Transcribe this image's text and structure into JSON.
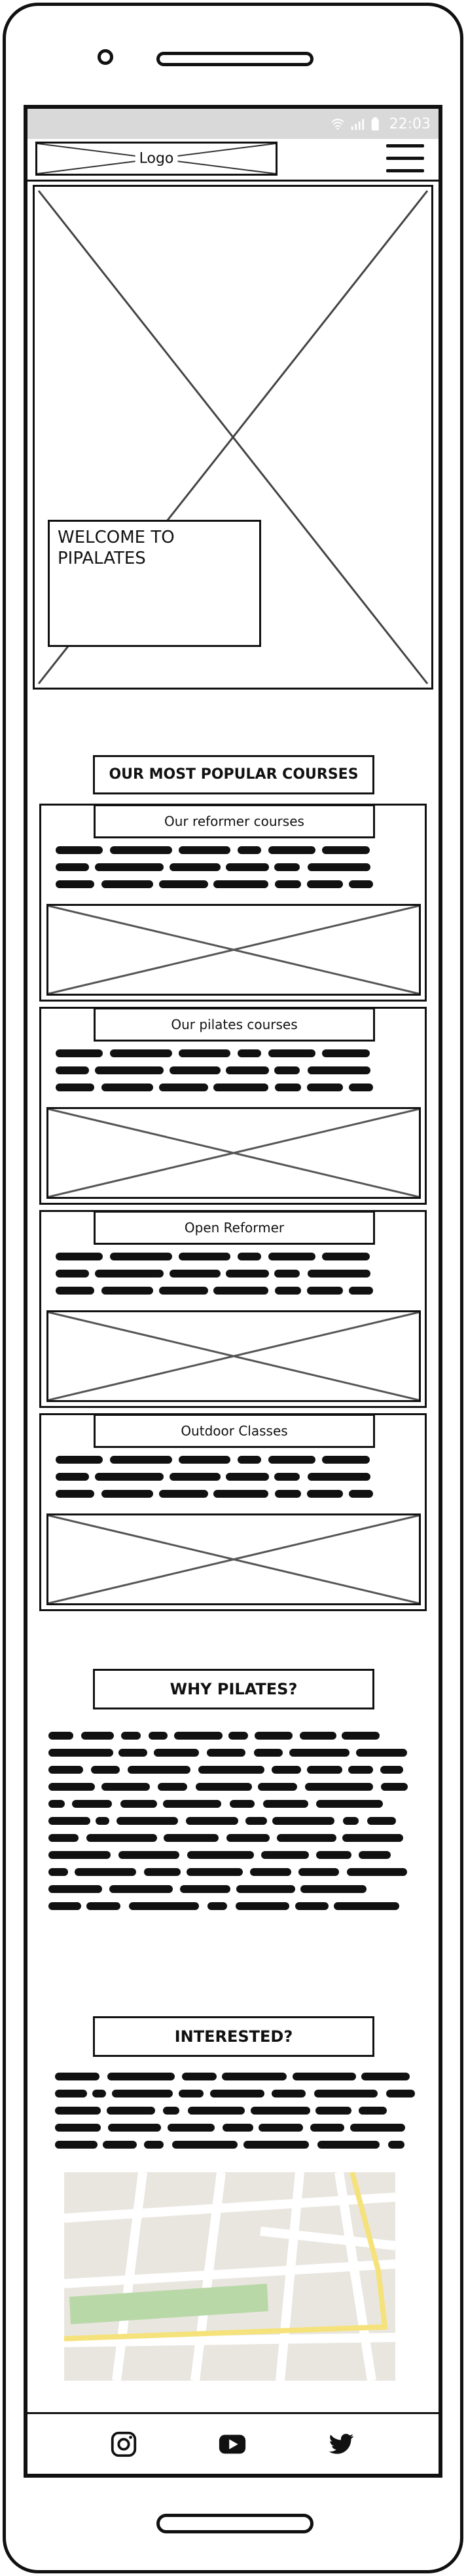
{
  "status_bar": {
    "time": "22:03",
    "icons": [
      "wifi-icon",
      "signal-icon",
      "battery-icon"
    ]
  },
  "header": {
    "logo": "Logo",
    "menu_icon": "hamburger-menu-icon"
  },
  "hero": {
    "welcome_line1": "WELCOME TO",
    "welcome_line2": "PIPALATES"
  },
  "popular": {
    "heading": "OUR MOST POPULAR COURSES",
    "courses": [
      {
        "title": "Our reformer courses"
      },
      {
        "title": "Our pilates courses"
      },
      {
        "title": "Open Reformer"
      },
      {
        "title": "Outdoor Classes"
      }
    ]
  },
  "why": {
    "heading": "WHY PILATES?"
  },
  "interested": {
    "heading": "INTERESTED?"
  },
  "footer": {
    "social_icons": [
      "instagram-icon",
      "youtube-icon",
      "twitter-icon"
    ]
  },
  "colors": {
    "status_bar": "#d9d9d9",
    "map_road_yellow": "#f5e27a",
    "map_park": "#b9d8a8",
    "map_bg": "#e9e6df"
  }
}
